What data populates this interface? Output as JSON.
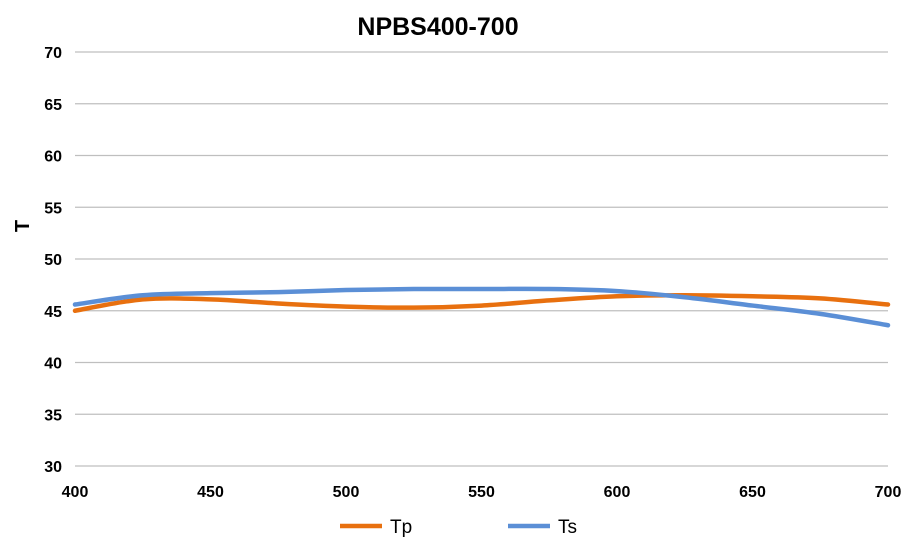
{
  "chart_data": {
    "type": "line",
    "title": "NPBS400-700",
    "xlabel": "",
    "ylabel": "T",
    "xlim": [
      400,
      700
    ],
    "ylim": [
      30,
      70
    ],
    "xticks": [
      400,
      450,
      500,
      550,
      600,
      650,
      700
    ],
    "yticks": [
      30,
      35,
      40,
      45,
      50,
      55,
      60,
      65,
      70
    ],
    "grid": "horizontal",
    "legend": "bottom",
    "smooth": true,
    "x": [
      400,
      425,
      450,
      475,
      500,
      525,
      550,
      575,
      600,
      625,
      650,
      675,
      700
    ],
    "series": [
      {
        "name": "Tp",
        "color": "#E8700F",
        "values": [
          45.0,
          46.1,
          46.1,
          45.7,
          45.4,
          45.3,
          45.5,
          46.0,
          46.4,
          46.5,
          46.4,
          46.2,
          45.6
        ]
      },
      {
        "name": "Ts",
        "color": "#5B8FD6",
        "values": [
          45.6,
          46.5,
          46.7,
          46.8,
          47.0,
          47.1,
          47.1,
          47.1,
          46.9,
          46.3,
          45.5,
          44.7,
          43.6
        ]
      }
    ]
  }
}
